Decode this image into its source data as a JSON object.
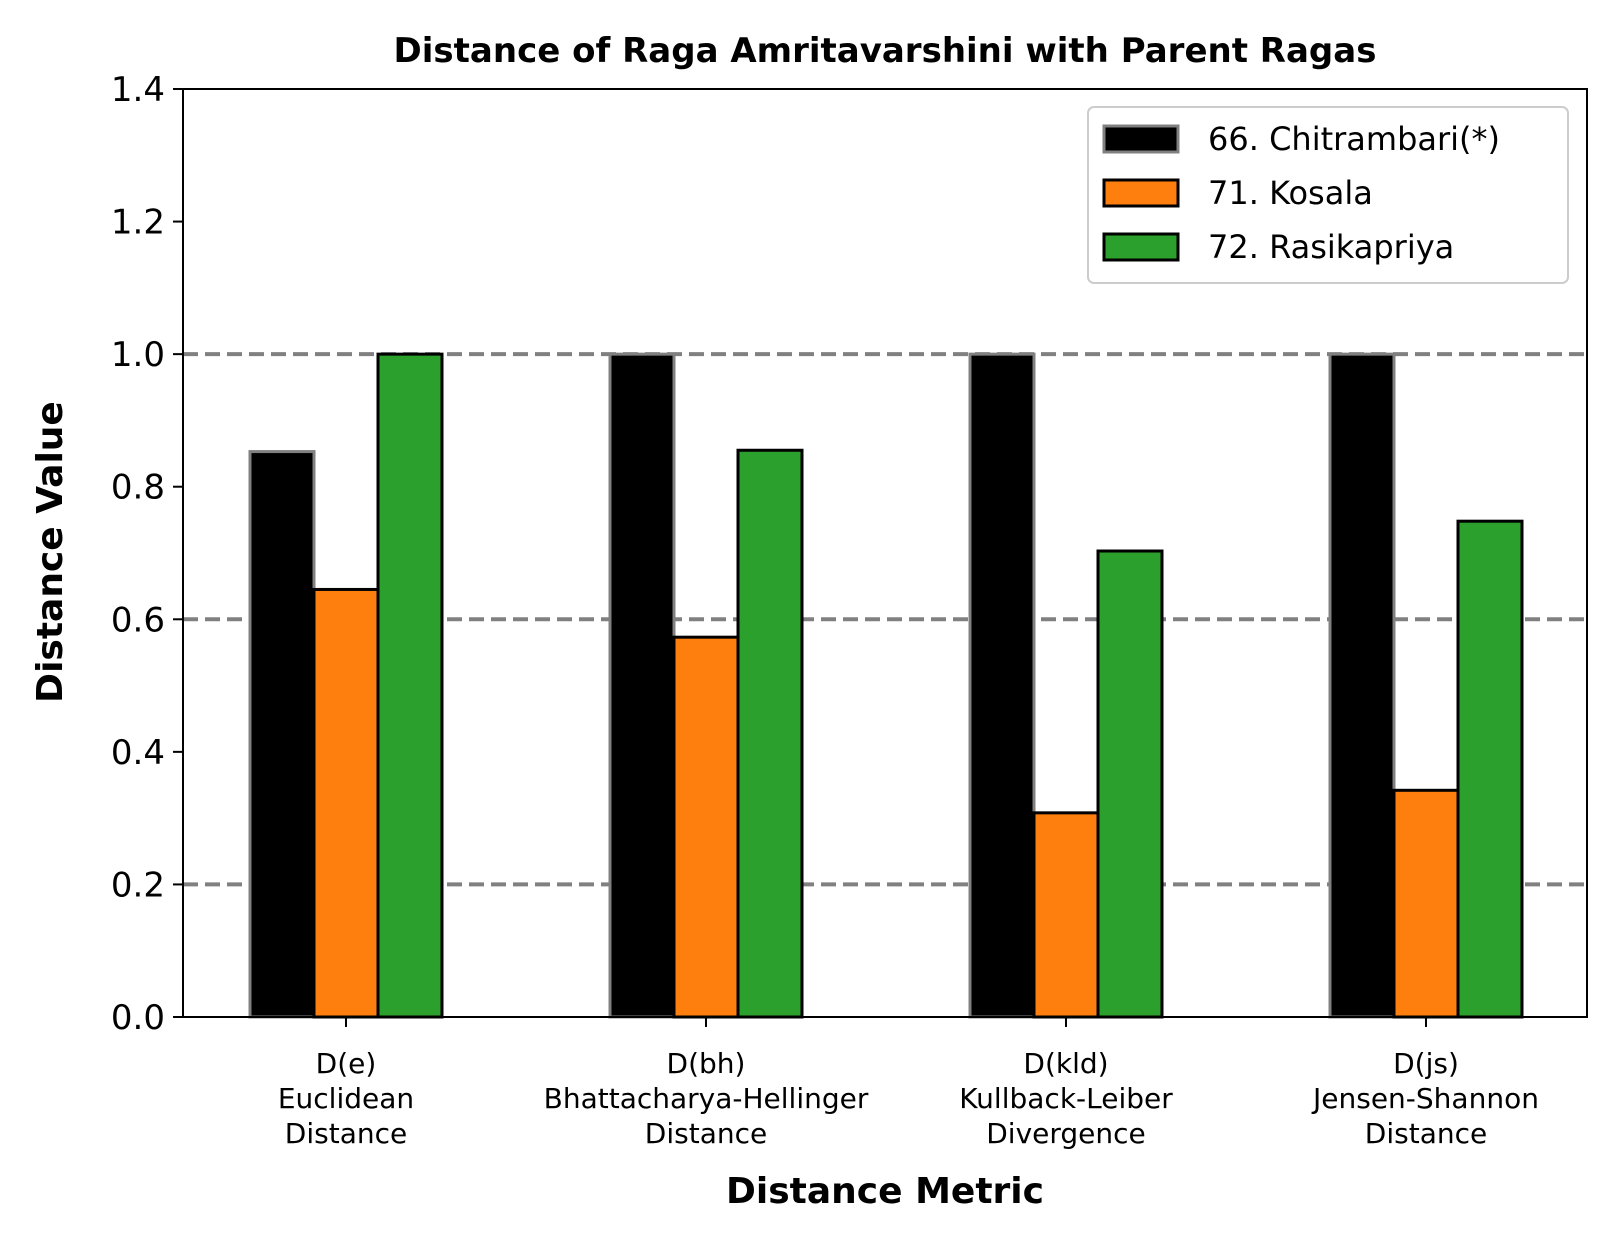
{
  "chart_data": {
    "type": "bar",
    "title": "Distance of Raga Amritavarshini with Parent Ragas",
    "xlabel": "Distance Metric",
    "ylabel": "Distance Value",
    "ylim": [
      0,
      1.4
    ],
    "yticks": [
      "0.0",
      "0.2",
      "0.4",
      "0.6",
      "0.8",
      "1.0",
      "1.2",
      "1.4"
    ],
    "reference_lines": [
      0.2,
      0.6,
      1.0
    ],
    "legend_position": "top-right",
    "categories": [
      [
        "D(e)",
        "Euclidean",
        "Distance"
      ],
      [
        "D(bh)",
        "Bhattacharya-Hellinger",
        "Distance"
      ],
      [
        "D(kld)",
        "Kullback-Leiber",
        "Divergence"
      ],
      [
        "D(js)",
        "Jensen-Shannon",
        "Distance"
      ]
    ],
    "series": [
      {
        "name": "66. Chitrambari(*)",
        "color": "#000000",
        "edge": "#808080",
        "values": [
          0.853,
          1.0,
          1.0,
          1.0
        ]
      },
      {
        "name": "71. Kosala",
        "color": "#ff7f0e",
        "edge": "#000000",
        "values": [
          0.645,
          0.573,
          0.308,
          0.342
        ]
      },
      {
        "name": "72. Rasikapriya",
        "color": "#2ca02c",
        "edge": "#000000",
        "values": [
          1.0,
          0.855,
          0.703,
          0.748
        ]
      }
    ]
  }
}
